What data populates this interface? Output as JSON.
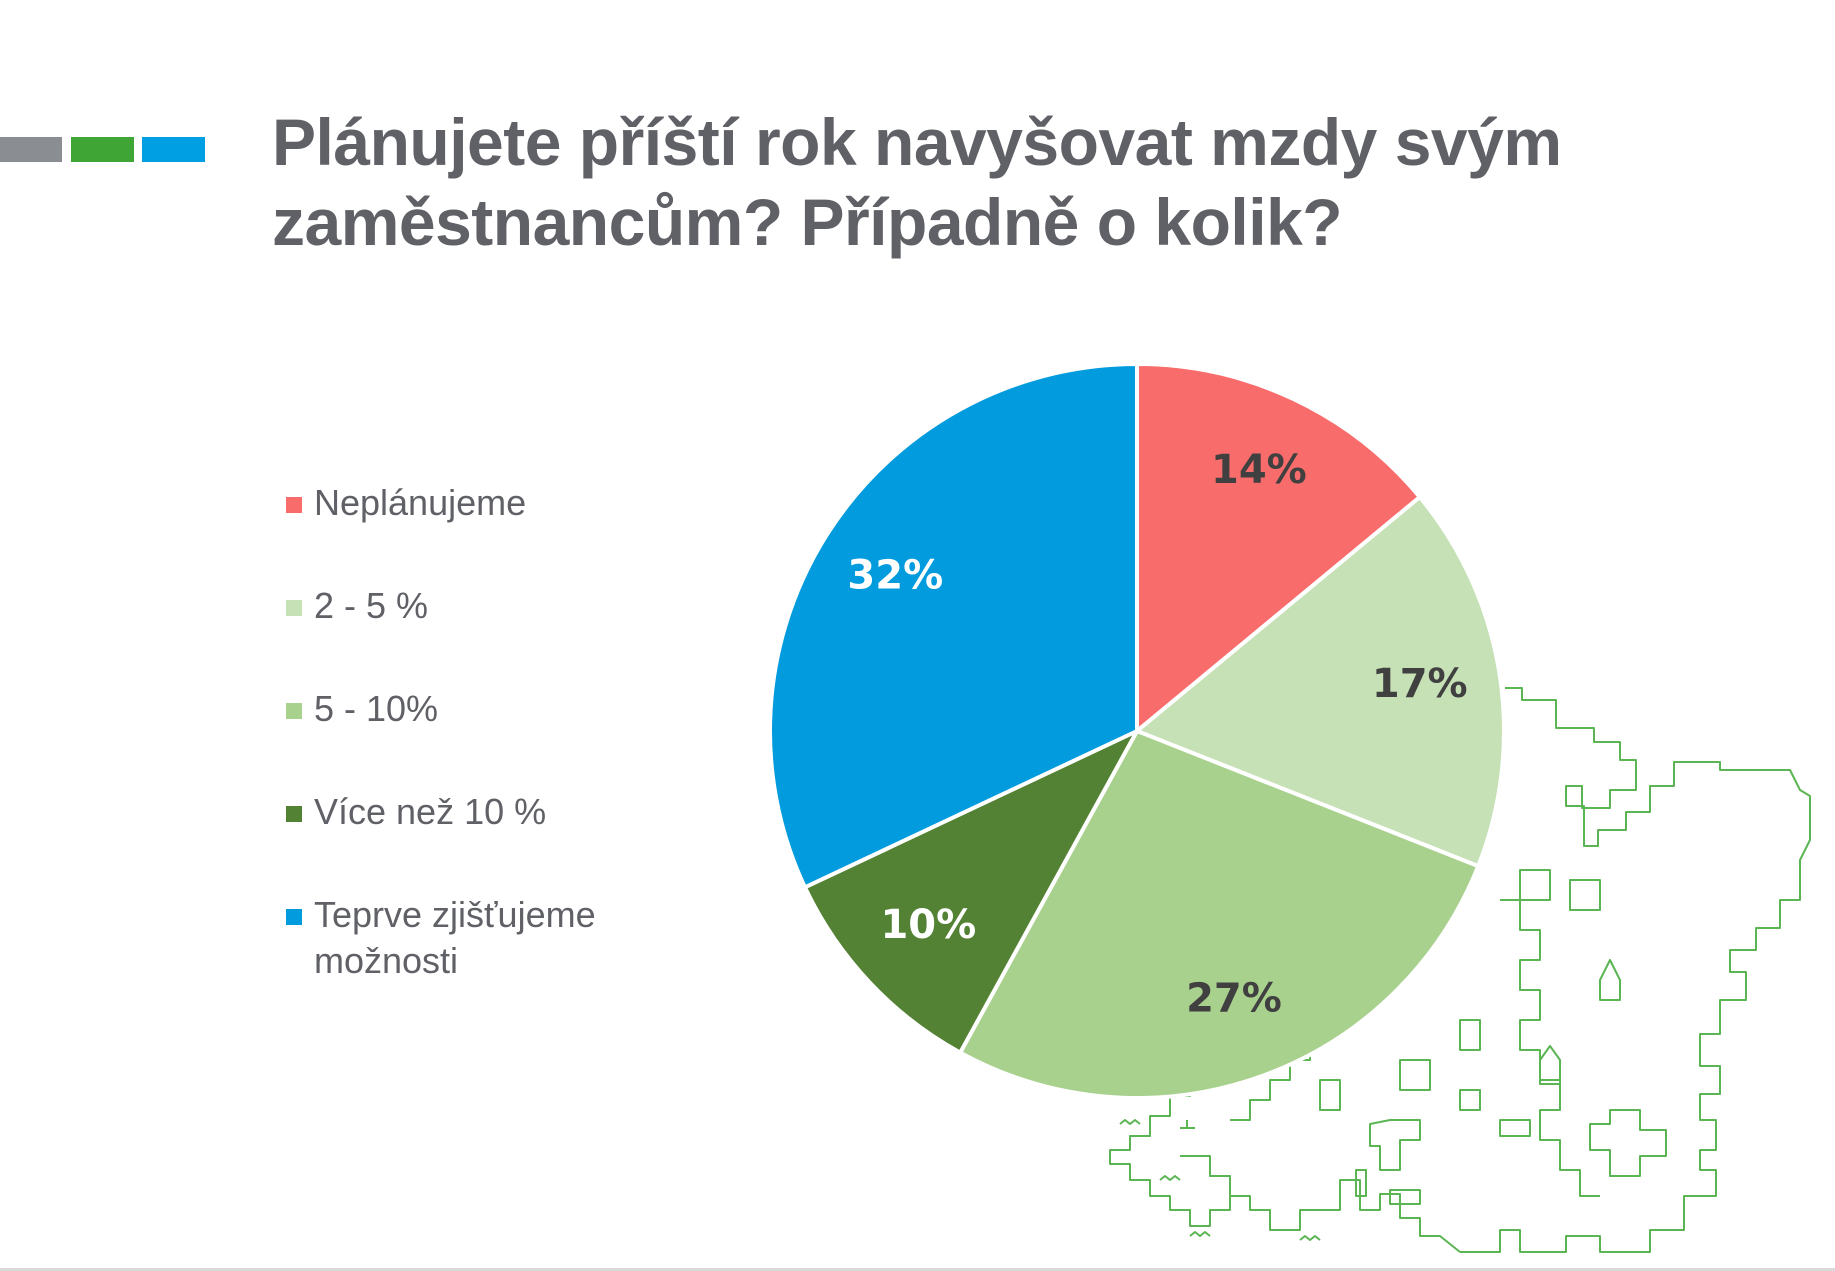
{
  "slide": {
    "title_lines": [
      "Plánujete příští rok navyšovat mzdy svým",
      "zaměstnancům? Případně o kolik?"
    ],
    "accent_colors": [
      "#8a8d91",
      "#3fa535",
      "#009fe3"
    ]
  },
  "chart_data": {
    "type": "pie",
    "title": "Plánujete příští rok navyšovat mzdy svým zaměstnancům? Případně o kolik?",
    "legend_position": "left",
    "slices": [
      {
        "label": "Neplánujeme",
        "value": 14,
        "display": "14%",
        "color": "#f96c6c",
        "text_color": "#404040"
      },
      {
        "label": "2 - 5 %",
        "value": 17,
        "display": "17%",
        "color": "#c6e1b6",
        "text_color": "#404040"
      },
      {
        "label": "5 - 10%",
        "value": 27,
        "display": "27%",
        "color": "#a9d18e",
        "text_color": "#404040"
      },
      {
        "label": "Více než 10 %",
        "value": 10,
        "display": "10%",
        "color": "#548235",
        "text_color": "#ffffff"
      },
      {
        "label": "Teprve zjišťujeme možnosti",
        "value": 32,
        "display": "32%",
        "color": "#029bdd",
        "text_color": "#ffffff"
      }
    ],
    "legend_lines": [
      [
        "Neplánujeme"
      ],
      [
        "2 - 5 %"
      ],
      [
        "5 - 10%"
      ],
      [
        "Více než 10 %"
      ],
      [
        "Teprve zjišťujeme",
        "možnosti"
      ]
    ]
  },
  "decoration": {
    "map_icon": "europe-cities-outline-icon",
    "map_color": "#5ab552"
  }
}
